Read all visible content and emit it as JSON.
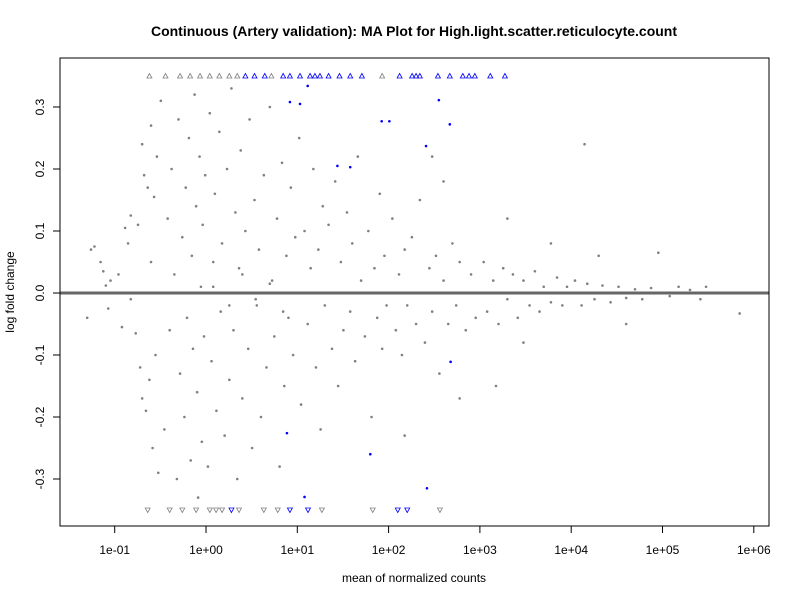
{
  "chart_data": {
    "type": "scatter",
    "title": "Continuous (Artery validation): MA Plot for High.light.scatter.reticulocyte.count",
    "xlabel": "mean of normalized counts",
    "ylabel": "log fold change",
    "x_scale": "log10",
    "xlim": [
      0.03,
      1500000
    ],
    "ylim": [
      -0.375,
      0.38
    ],
    "x_ticks": [
      0.1,
      1,
      10,
      100,
      1000,
      10000,
      100000,
      1000000
    ],
    "x_tick_labels": [
      "1e-01",
      "1e+00",
      "1e+01",
      "1e+02",
      "1e+03",
      "1e+04",
      "1e+05",
      "1e+06"
    ],
    "y_ticks": [
      -0.3,
      -0.2,
      -0.1,
      0.0,
      0.1,
      0.2,
      0.3
    ],
    "y_tick_labels": [
      "-0.3",
      "-0.2",
      "-0.1",
      "0.0",
      "0.1",
      "0.2",
      "0.3"
    ],
    "grid": false,
    "reference_line": 0,
    "colors": {
      "non_significant": "#808080",
      "significant": "#0000ff",
      "reference_line": "#666666"
    },
    "cap_value": 0.35,
    "series": [
      {
        "marker": "dot",
        "color": "#808080",
        "points": [
          [
            0.05,
            -0.04
          ],
          [
            0.055,
            0.07
          ],
          [
            0.06,
            0.075
          ],
          [
            0.07,
            0.05
          ],
          [
            0.075,
            0.035
          ],
          [
            0.08,
            0.012
          ],
          [
            0.085,
            -0.025
          ],
          [
            0.09,
            0.02
          ],
          [
            0.11,
            0.03
          ],
          [
            0.12,
            -0.055
          ],
          [
            0.13,
            0.105
          ],
          [
            0.14,
            0.08
          ],
          [
            0.15,
            -0.01
          ],
          [
            0.15,
            0.125
          ],
          [
            0.17,
            -0.065
          ],
          [
            0.18,
            0.11
          ],
          [
            0.19,
            -0.12
          ],
          [
            0.2,
            0.24
          ],
          [
            0.2,
            -0.17
          ],
          [
            0.21,
            0.19
          ],
          [
            0.22,
            -0.19
          ],
          [
            0.23,
            0.17
          ],
          [
            0.24,
            -0.14
          ],
          [
            0.25,
            0.27
          ],
          [
            0.25,
            0.05
          ],
          [
            0.26,
            -0.25
          ],
          [
            0.27,
            0.155
          ],
          [
            0.28,
            -0.1
          ],
          [
            0.29,
            0.22
          ],
          [
            0.3,
            -0.29
          ],
          [
            0.32,
            0.31
          ],
          [
            0.35,
            -0.22
          ],
          [
            0.38,
            0.12
          ],
          [
            0.4,
            -0.06
          ],
          [
            0.42,
            0.2
          ],
          [
            0.45,
            0.03
          ],
          [
            0.48,
            -0.3
          ],
          [
            0.5,
            0.28
          ],
          [
            0.52,
            -0.13
          ],
          [
            0.55,
            0.09
          ],
          [
            0.58,
            -0.2
          ],
          [
            0.6,
            0.17
          ],
          [
            0.62,
            -0.04
          ],
          [
            0.65,
            0.25
          ],
          [
            0.68,
            -0.27
          ],
          [
            0.7,
            0.06
          ],
          [
            0.72,
            -0.09
          ],
          [
            0.75,
            0.32
          ],
          [
            0.78,
            0.14
          ],
          [
            0.8,
            -0.16
          ],
          [
            0.82,
            -0.33
          ],
          [
            0.85,
            0.22
          ],
          [
            0.88,
            0.01
          ],
          [
            0.9,
            -0.24
          ],
          [
            0.92,
            0.11
          ],
          [
            0.95,
            -0.07
          ],
          [
            0.98,
            0.19
          ],
          [
            1.05,
            -0.28
          ],
          [
            1.1,
            0.29
          ],
          [
            1.15,
            -0.11
          ],
          [
            1.2,
            0.05
          ],
          [
            1.25,
            0.16
          ],
          [
            1.3,
            -0.19
          ],
          [
            1.4,
            0.26
          ],
          [
            1.45,
            -0.03
          ],
          [
            1.5,
            0.08
          ],
          [
            1.6,
            -0.23
          ],
          [
            1.7,
            0.2
          ],
          [
            1.8,
            -0.14
          ],
          [
            1.9,
            0.33
          ],
          [
            2.0,
            -0.06
          ],
          [
            2.1,
            0.13
          ],
          [
            2.2,
            -0.3
          ],
          [
            2.3,
            0.04
          ],
          [
            2.4,
            0.23
          ],
          [
            2.5,
            -0.17
          ],
          [
            2.7,
            0.1
          ],
          [
            2.9,
            -0.09
          ],
          [
            3.0,
            0.28
          ],
          [
            3.2,
            -0.25
          ],
          [
            3.4,
            0.15
          ],
          [
            3.6,
            -0.02
          ],
          [
            3.8,
            0.07
          ],
          [
            4.0,
            -0.2
          ],
          [
            4.3,
            0.19
          ],
          [
            4.6,
            -0.12
          ],
          [
            5.0,
            0.3
          ],
          [
            5.3,
            0.02
          ],
          [
            5.6,
            -0.07
          ],
          [
            6.0,
            0.12
          ],
          [
            6.4,
            -0.28
          ],
          [
            6.8,
            0.21
          ],
          [
            7.2,
            -0.15
          ],
          [
            7.6,
            0.06
          ],
          [
            8.0,
            -0.04
          ],
          [
            8.5,
            0.17
          ],
          [
            9.0,
            -0.1
          ],
          [
            9.5,
            0.09
          ],
          [
            1.2,
            0.01
          ],
          [
            1.8,
            -0.02
          ],
          [
            2.5,
            0.03
          ],
          [
            3.5,
            -0.01
          ],
          [
            5,
            0.015
          ],
          [
            7,
            -0.03
          ],
          [
            10.5,
            0.25
          ],
          [
            11,
            -0.18
          ],
          [
            12,
            0.1
          ],
          [
            13,
            -0.05
          ],
          [
            14,
            0.04
          ],
          [
            15,
            0.2
          ],
          [
            16,
            -0.12
          ],
          [
            17,
            0.07
          ],
          [
            18,
            -0.22
          ],
          [
            19,
            0.14
          ],
          [
            20,
            -0.02
          ],
          [
            22,
            0.11
          ],
          [
            24,
            -0.09
          ],
          [
            26,
            0.18
          ],
          [
            28,
            -0.15
          ],
          [
            30,
            0.05
          ],
          [
            32,
            -0.06
          ],
          [
            35,
            0.13
          ],
          [
            38,
            -0.03
          ],
          [
            40,
            0.08
          ],
          [
            43,
            -0.11
          ],
          [
            46,
            0.22
          ],
          [
            50,
            0.02
          ],
          [
            55,
            -0.07
          ],
          [
            60,
            0.1
          ],
          [
            65,
            -0.2
          ],
          [
            70,
            0.04
          ],
          [
            75,
            -0.04
          ],
          [
            80,
            0.16
          ],
          [
            85,
            -0.09
          ],
          [
            90,
            0.06
          ],
          [
            95,
            -0.02
          ],
          [
            110,
            0.12
          ],
          [
            120,
            -0.06
          ],
          [
            130,
            0.03
          ],
          [
            140,
            -0.1
          ],
          [
            150,
            0.07
          ],
          [
            160,
            -0.02
          ],
          [
            180,
            0.09
          ],
          [
            200,
            -0.05
          ],
          [
            220,
            0.15
          ],
          [
            250,
            -0.08
          ],
          [
            280,
            0.04
          ],
          [
            300,
            -0.03
          ],
          [
            330,
            0.06
          ],
          [
            360,
            -0.13
          ],
          [
            400,
            0.02
          ],
          [
            450,
            -0.05
          ],
          [
            500,
            0.08
          ],
          [
            550,
            -0.02
          ],
          [
            600,
            0.05
          ],
          [
            700,
            -0.06
          ],
          [
            800,
            0.03
          ],
          [
            900,
            -0.04
          ],
          [
            400,
            0.18
          ],
          [
            600,
            -0.17
          ],
          [
            300,
            0.22
          ],
          [
            150,
            -0.23
          ],
          [
            1100,
            0.05
          ],
          [
            1200,
            -0.03
          ],
          [
            1400,
            0.02
          ],
          [
            1600,
            -0.05
          ],
          [
            1800,
            0.04
          ],
          [
            2000,
            -0.01
          ],
          [
            2300,
            0.03
          ],
          [
            2600,
            -0.04
          ],
          [
            3000,
            0.02
          ],
          [
            3500,
            -0.02
          ],
          [
            4000,
            0.035
          ],
          [
            4500,
            -0.03
          ],
          [
            5000,
            0.01
          ],
          [
            6000,
            -0.015
          ],
          [
            7000,
            0.025
          ],
          [
            8000,
            -0.02
          ],
          [
            9000,
            0.01
          ],
          [
            2000,
            0.12
          ],
          [
            1500,
            -0.15
          ],
          [
            3000,
            -0.08
          ],
          [
            6000,
            0.08
          ],
          [
            11000,
            0.02
          ],
          [
            13000,
            -0.02
          ],
          [
            15000,
            0.015
          ],
          [
            18000,
            -0.01
          ],
          [
            22000,
            0.012
          ],
          [
            27000,
            -0.015
          ],
          [
            33000,
            0.01
          ],
          [
            40000,
            -0.008
          ],
          [
            50000,
            0.006
          ],
          [
            60000,
            -0.01
          ],
          [
            75000,
            0.008
          ],
          [
            90000,
            0.065
          ],
          [
            120000,
            -0.005
          ],
          [
            150000,
            0.01
          ],
          [
            200000,
            0.005
          ],
          [
            260000,
            -0.01
          ],
          [
            300000,
            0.01
          ],
          [
            700000,
            -0.033
          ],
          [
            14000,
            0.24
          ],
          [
            20000,
            0.06
          ],
          [
            40000,
            -0.05
          ]
        ]
      },
      {
        "marker": "dot",
        "color": "#0000ff",
        "points": [
          [
            13.0,
            0.334
          ],
          [
            8.3,
            0.308
          ],
          [
            10.7,
            0.305
          ],
          [
            84,
            0.277
          ],
          [
            102,
            0.277
          ],
          [
            355,
            0.311
          ],
          [
            468,
            0.272
          ],
          [
            257,
            0.237
          ],
          [
            27.5,
            0.205
          ],
          [
            38,
            0.203
          ],
          [
            478,
            -0.111
          ],
          [
            7.7,
            -0.226
          ],
          [
            63,
            -0.26
          ],
          [
            263,
            -0.315
          ],
          [
            12,
            -0.329
          ]
        ]
      },
      {
        "marker": "triangle-up",
        "color": "#808080",
        "points": [
          [
            0.24,
            0.35
          ],
          [
            0.36,
            0.35
          ],
          [
            0.52,
            0.35
          ],
          [
            0.67,
            0.35
          ],
          [
            0.86,
            0.35
          ],
          [
            1.1,
            0.35
          ],
          [
            1.4,
            0.35
          ],
          [
            1.8,
            0.35
          ],
          [
            2.2,
            0.35
          ],
          [
            5.2,
            0.35
          ],
          [
            85,
            0.35
          ]
        ]
      },
      {
        "marker": "triangle-up",
        "color": "#0000ff",
        "points": [
          [
            2.7,
            0.35
          ],
          [
            3.4,
            0.35
          ],
          [
            4.4,
            0.35
          ],
          [
            7.0,
            0.35
          ],
          [
            8.3,
            0.35
          ],
          [
            10.7,
            0.35
          ],
          [
            13.8,
            0.35
          ],
          [
            15.6,
            0.35
          ],
          [
            17.7,
            0.35
          ],
          [
            22,
            0.35
          ],
          [
            29,
            0.35
          ],
          [
            38,
            0.35
          ],
          [
            51,
            0.35
          ],
          [
            132,
            0.35
          ],
          [
            181,
            0.35
          ],
          [
            200,
            0.35
          ],
          [
            220,
            0.35
          ],
          [
            347,
            0.35
          ],
          [
            468,
            0.35
          ],
          [
            650,
            0.35
          ],
          [
            760,
            0.35
          ],
          [
            880,
            0.35
          ],
          [
            1300,
            0.35
          ],
          [
            1880,
            0.35
          ]
        ]
      },
      {
        "marker": "triangle-down",
        "color": "#808080",
        "points": [
          [
            0.23,
            -0.35
          ],
          [
            0.4,
            -0.35
          ],
          [
            0.55,
            -0.35
          ],
          [
            0.78,
            -0.35
          ],
          [
            1.1,
            -0.35
          ],
          [
            1.29,
            -0.35
          ],
          [
            1.5,
            -0.35
          ],
          [
            2.3,
            -0.35
          ],
          [
            4.3,
            -0.35
          ],
          [
            6.1,
            -0.35
          ],
          [
            18.6,
            -0.35
          ],
          [
            67,
            -0.35
          ],
          [
            365,
            -0.35
          ]
        ]
      },
      {
        "marker": "triangle-down",
        "color": "#0000ff",
        "points": [
          [
            1.9,
            -0.35
          ],
          [
            8.3,
            -0.35
          ],
          [
            13.1,
            -0.35
          ],
          [
            126,
            -0.35
          ],
          [
            160,
            -0.35
          ]
        ]
      }
    ]
  }
}
